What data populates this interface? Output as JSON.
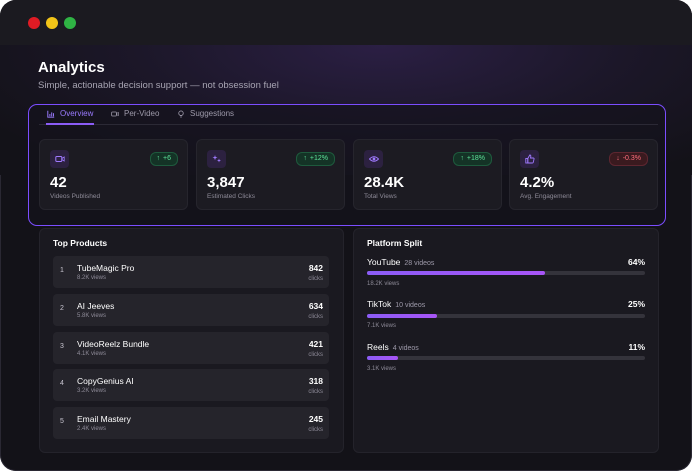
{
  "window": {
    "controls": [
      "close",
      "minimize",
      "maximize"
    ]
  },
  "header": {
    "title": "Analytics",
    "subtitle": "Simple, actionable decision support — not obsession fuel"
  },
  "tabs": [
    {
      "label": "Overview",
      "icon": "bar-chart-icon",
      "active": true
    },
    {
      "label": "Per-Video",
      "icon": "video-icon",
      "active": false
    },
    {
      "label": "Suggestions",
      "icon": "lightbulb-icon",
      "active": false
    }
  ],
  "stats": [
    {
      "icon": "video-icon",
      "badge": "+6",
      "trend": "up",
      "value": "42",
      "label": "Videos Published"
    },
    {
      "icon": "sparkle-icon",
      "badge": "+12%",
      "trend": "up",
      "value": "3,847",
      "label": "Estimated Clicks"
    },
    {
      "icon": "eye-icon",
      "badge": "+18%",
      "trend": "up",
      "value": "28.4K",
      "label": "Total Views"
    },
    {
      "icon": "thumbs-up-icon",
      "badge": "-0.3%",
      "trend": "down",
      "value": "4.2%",
      "label": "Avg. Engagement"
    }
  ],
  "top_products": {
    "title": "Top Products",
    "clicks_label": "clicks",
    "items": [
      {
        "rank": "1",
        "name": "TubeMagic Pro",
        "views": "8.2K views",
        "clicks": "842"
      },
      {
        "rank": "2",
        "name": "AI Jeeves",
        "views": "5.8K views",
        "clicks": "634"
      },
      {
        "rank": "3",
        "name": "VideoReelz Bundle",
        "views": "4.1K views",
        "clicks": "421"
      },
      {
        "rank": "4",
        "name": "CopyGenius AI",
        "views": "3.2K views",
        "clicks": "318"
      },
      {
        "rank": "5",
        "name": "Email Mastery",
        "views": "2.4K views",
        "clicks": "245"
      }
    ]
  },
  "platform_split": {
    "title": "Platform Split",
    "items": [
      {
        "name": "YouTube",
        "videos": "28 videos",
        "percent": "64%",
        "share": 0.64,
        "views": "18.2K views"
      },
      {
        "name": "TikTok",
        "videos": "10 videos",
        "percent": "25%",
        "share": 0.25,
        "views": "7.1K views"
      },
      {
        "name": "Reels",
        "videos": "4 videos",
        "percent": "11%",
        "share": 0.11,
        "views": "3.1K views"
      }
    ]
  },
  "colors": {
    "accent": "#8b5cf6",
    "positive": "#5ee39a",
    "negative": "#ff6f7d",
    "background": "#131218",
    "card": "#1c1b22"
  }
}
